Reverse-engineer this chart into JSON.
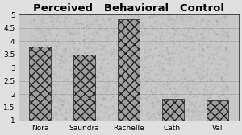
{
  "title": "Perceived   Behavioral   Control",
  "categories": [
    "Nora",
    "Saundra",
    "Rachelle",
    "Cathi",
    "Val"
  ],
  "values": [
    3.8,
    3.5,
    4.83,
    1.83,
    1.75
  ],
  "ylim": [
    1,
    5
  ],
  "yticks": [
    1,
    1.5,
    2,
    2.5,
    3,
    3.5,
    4,
    4.5,
    5
  ],
  "ytick_labels": [
    "1",
    "1.5",
    "2",
    "2.5",
    "3",
    "3.5",
    "4",
    "4.5",
    "5"
  ],
  "bar_facecolor": "#a0a0a0",
  "bar_edgecolor": "#222222",
  "axes_facecolor": "#c8c8c8",
  "fig_facecolor": "#e0e0e0",
  "hatch": "xxx",
  "title_fontsize": 9.5,
  "tick_fontsize": 6.5,
  "bar_width": 0.5,
  "linewidth": 0.5
}
